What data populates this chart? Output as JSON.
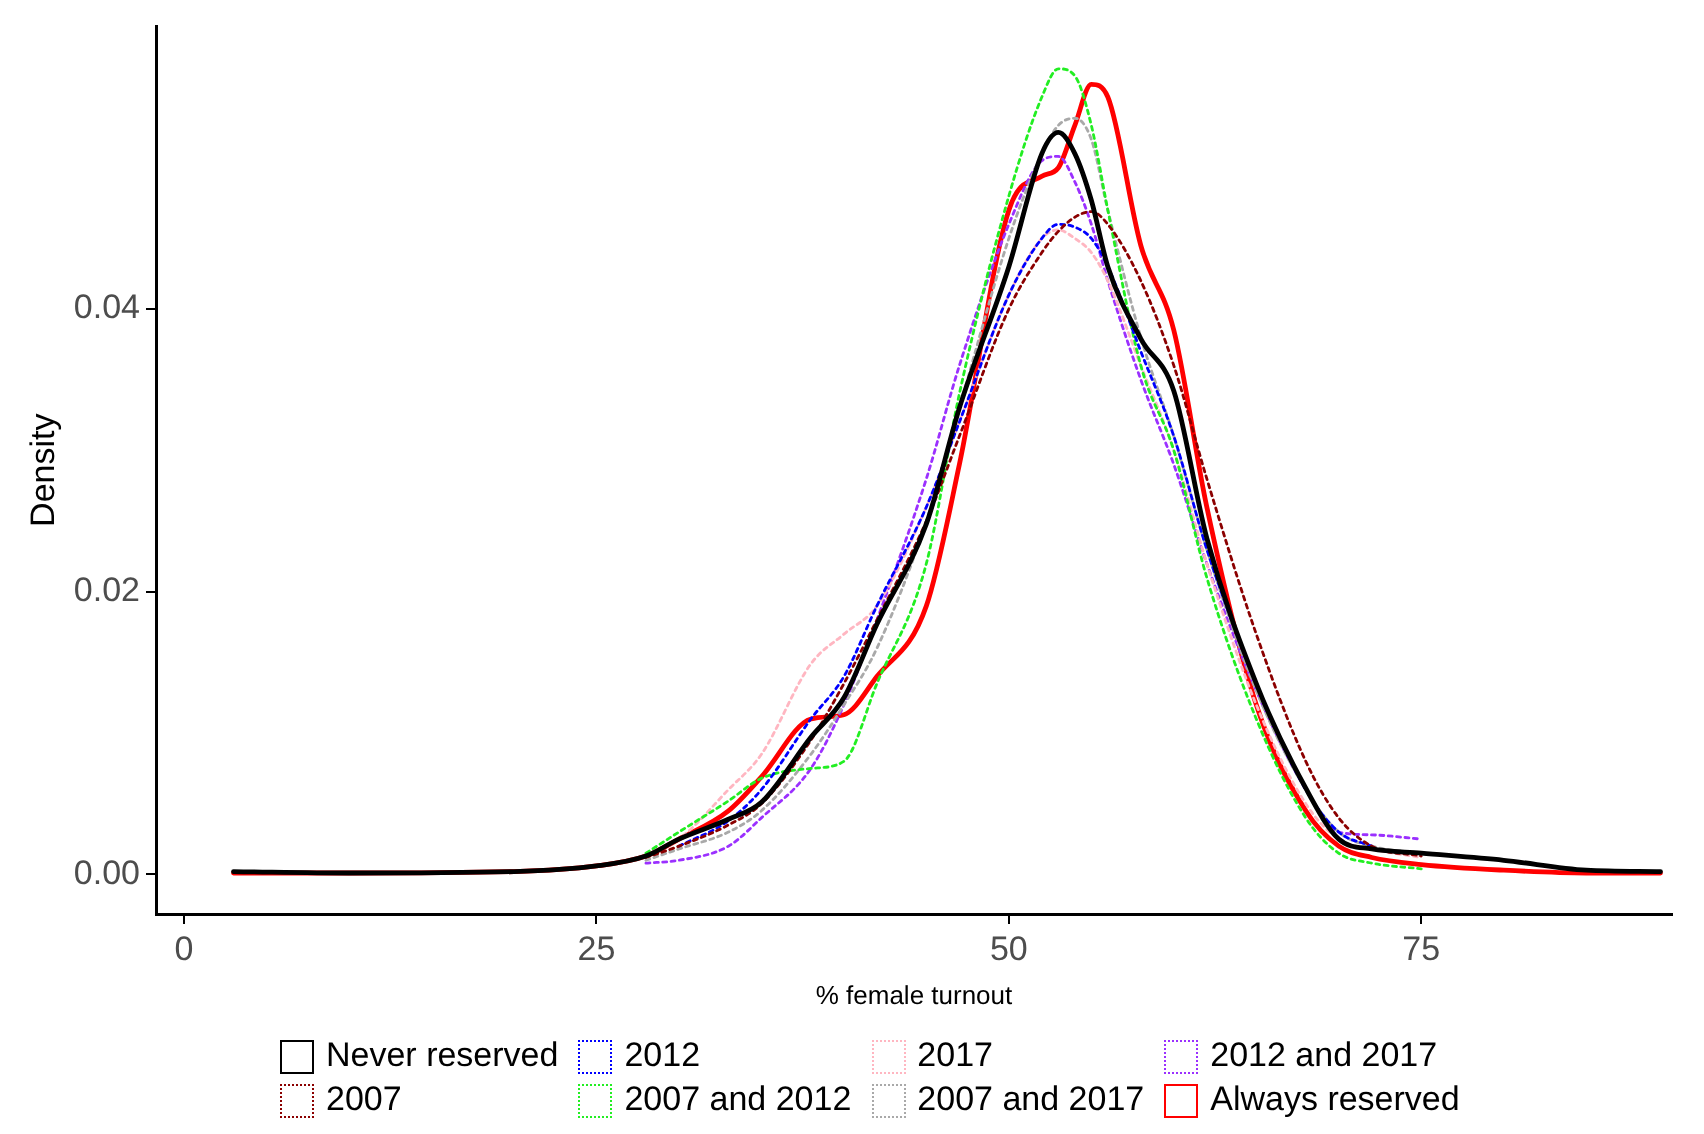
{
  "chart_data": {
    "type": "line",
    "xlabel": "% female turnout",
    "ylabel": "Density",
    "x": [
      3,
      10,
      20,
      25,
      28,
      30,
      33,
      35,
      38,
      40,
      42,
      45,
      47,
      50,
      52,
      53,
      54,
      55,
      56,
      58,
      60,
      62,
      65,
      68,
      70,
      72,
      75,
      80,
      85,
      89.5
    ],
    "xlim": [
      -1.7,
      90.2
    ],
    "xticks": [
      0,
      25,
      50,
      75
    ],
    "ylim": [
      -0.0028,
      0.06
    ],
    "yticks": [
      {
        "value": 0,
        "label": "0.00"
      },
      {
        "value": 0.02,
        "label": "0.02"
      },
      {
        "value": 0.04,
        "label": "0.04"
      }
    ],
    "grid": false,
    "legend": "bottom",
    "marker": "none",
    "series": [
      {
        "name": "Never reserved",
        "color": "#000000",
        "line_style": "solid",
        "values": [
          0.0002,
          0.0001,
          0.0002,
          0.0006,
          0.0013,
          0.0025,
          0.0039,
          0.0051,
          0.0097,
          0.0125,
          0.0177,
          0.0248,
          0.033,
          0.043,
          0.051,
          0.0525,
          0.051,
          0.0477,
          0.043,
          0.0379,
          0.0342,
          0.0238,
          0.0135,
          0.0061,
          0.0025,
          0.0018,
          0.0015,
          0.001,
          0.0003,
          0.0002
        ]
      },
      {
        "name": "2007",
        "color": "#8b0000",
        "line_style": "dotted",
        "values": [
          null,
          null,
          null,
          null,
          0.0012,
          0.002,
          0.0035,
          0.005,
          0.0095,
          0.0135,
          0.018,
          0.025,
          0.031,
          0.04,
          0.044,
          0.0455,
          0.0465,
          0.0469,
          0.046,
          0.042,
          0.036,
          0.028,
          0.017,
          0.008,
          0.004,
          0.002,
          0.0013,
          null,
          null,
          null
        ]
      },
      {
        "name": "2012",
        "color": "#0000ff",
        "line_style": "dotted",
        "values": [
          null,
          null,
          null,
          null,
          null,
          0.002,
          0.0038,
          0.006,
          0.011,
          0.014,
          0.019,
          0.026,
          0.032,
          0.041,
          0.045,
          0.046,
          0.0458,
          0.045,
          0.043,
          0.037,
          0.031,
          0.023,
          0.0135,
          0.006,
          0.003,
          0.002,
          null,
          null,
          null,
          null
        ]
      },
      {
        "name": "2007 and 2012",
        "color": "#22ee22",
        "line_style": "dotted",
        "values": [
          null,
          null,
          null,
          null,
          0.0015,
          0.003,
          0.0052,
          0.0068,
          0.0075,
          0.008,
          0.0135,
          0.022,
          0.034,
          0.048,
          0.055,
          0.057,
          0.0565,
          0.053,
          0.047,
          0.036,
          0.03,
          0.021,
          0.011,
          0.004,
          0.0015,
          0.0008,
          0.0004,
          null,
          null,
          null
        ]
      },
      {
        "name": "2017",
        "color": "#ffb6c1",
        "line_style": "dotted",
        "values": [
          null,
          null,
          null,
          null,
          0.0014,
          0.0025,
          0.006,
          0.0085,
          0.0149,
          0.017,
          0.019,
          0.026,
          0.032,
          0.041,
          0.045,
          0.0456,
          0.045,
          0.044,
          0.042,
          0.036,
          0.03,
          0.022,
          0.012,
          0.005,
          0.0025,
          0.0018,
          0.0012,
          null,
          null,
          null
        ]
      },
      {
        "name": "2007 and 2017",
        "color": "#a9a9a9",
        "line_style": "dotted",
        "values": [
          null,
          null,
          null,
          null,
          0.001,
          0.0018,
          0.003,
          0.0045,
          0.0085,
          0.012,
          0.016,
          0.025,
          0.033,
          0.045,
          0.051,
          0.053,
          0.0535,
          0.052,
          0.047,
          0.038,
          0.031,
          0.023,
          0.013,
          0.006,
          0.003,
          0.002,
          0.0015,
          null,
          null,
          null
        ]
      },
      {
        "name": "2012 and 2017",
        "color": "#9b30ff",
        "line_style": "dotted",
        "values": [
          null,
          null,
          null,
          null,
          0.0008,
          0.001,
          0.002,
          0.004,
          0.0075,
          0.012,
          0.018,
          0.028,
          0.036,
          0.046,
          0.0505,
          0.0508,
          0.049,
          0.046,
          0.042,
          0.035,
          0.029,
          0.022,
          0.013,
          0.006,
          0.003,
          0.0028,
          0.0025,
          null,
          null,
          null
        ]
      },
      {
        "name": "Always reserved",
        "color": "#ff0000",
        "line_style": "solid",
        "values": [
          0.0001,
          0.0001,
          0.0002,
          0.0006,
          0.0013,
          0.0025,
          0.0045,
          0.0069,
          0.011,
          0.0113,
          0.014,
          0.019,
          0.029,
          0.047,
          0.0494,
          0.05,
          0.053,
          0.0559,
          0.055,
          0.0445,
          0.0385,
          0.026,
          0.012,
          0.0045,
          0.002,
          0.0012,
          0.0007,
          0.0003,
          0.0001,
          0.0001
        ]
      }
    ]
  }
}
